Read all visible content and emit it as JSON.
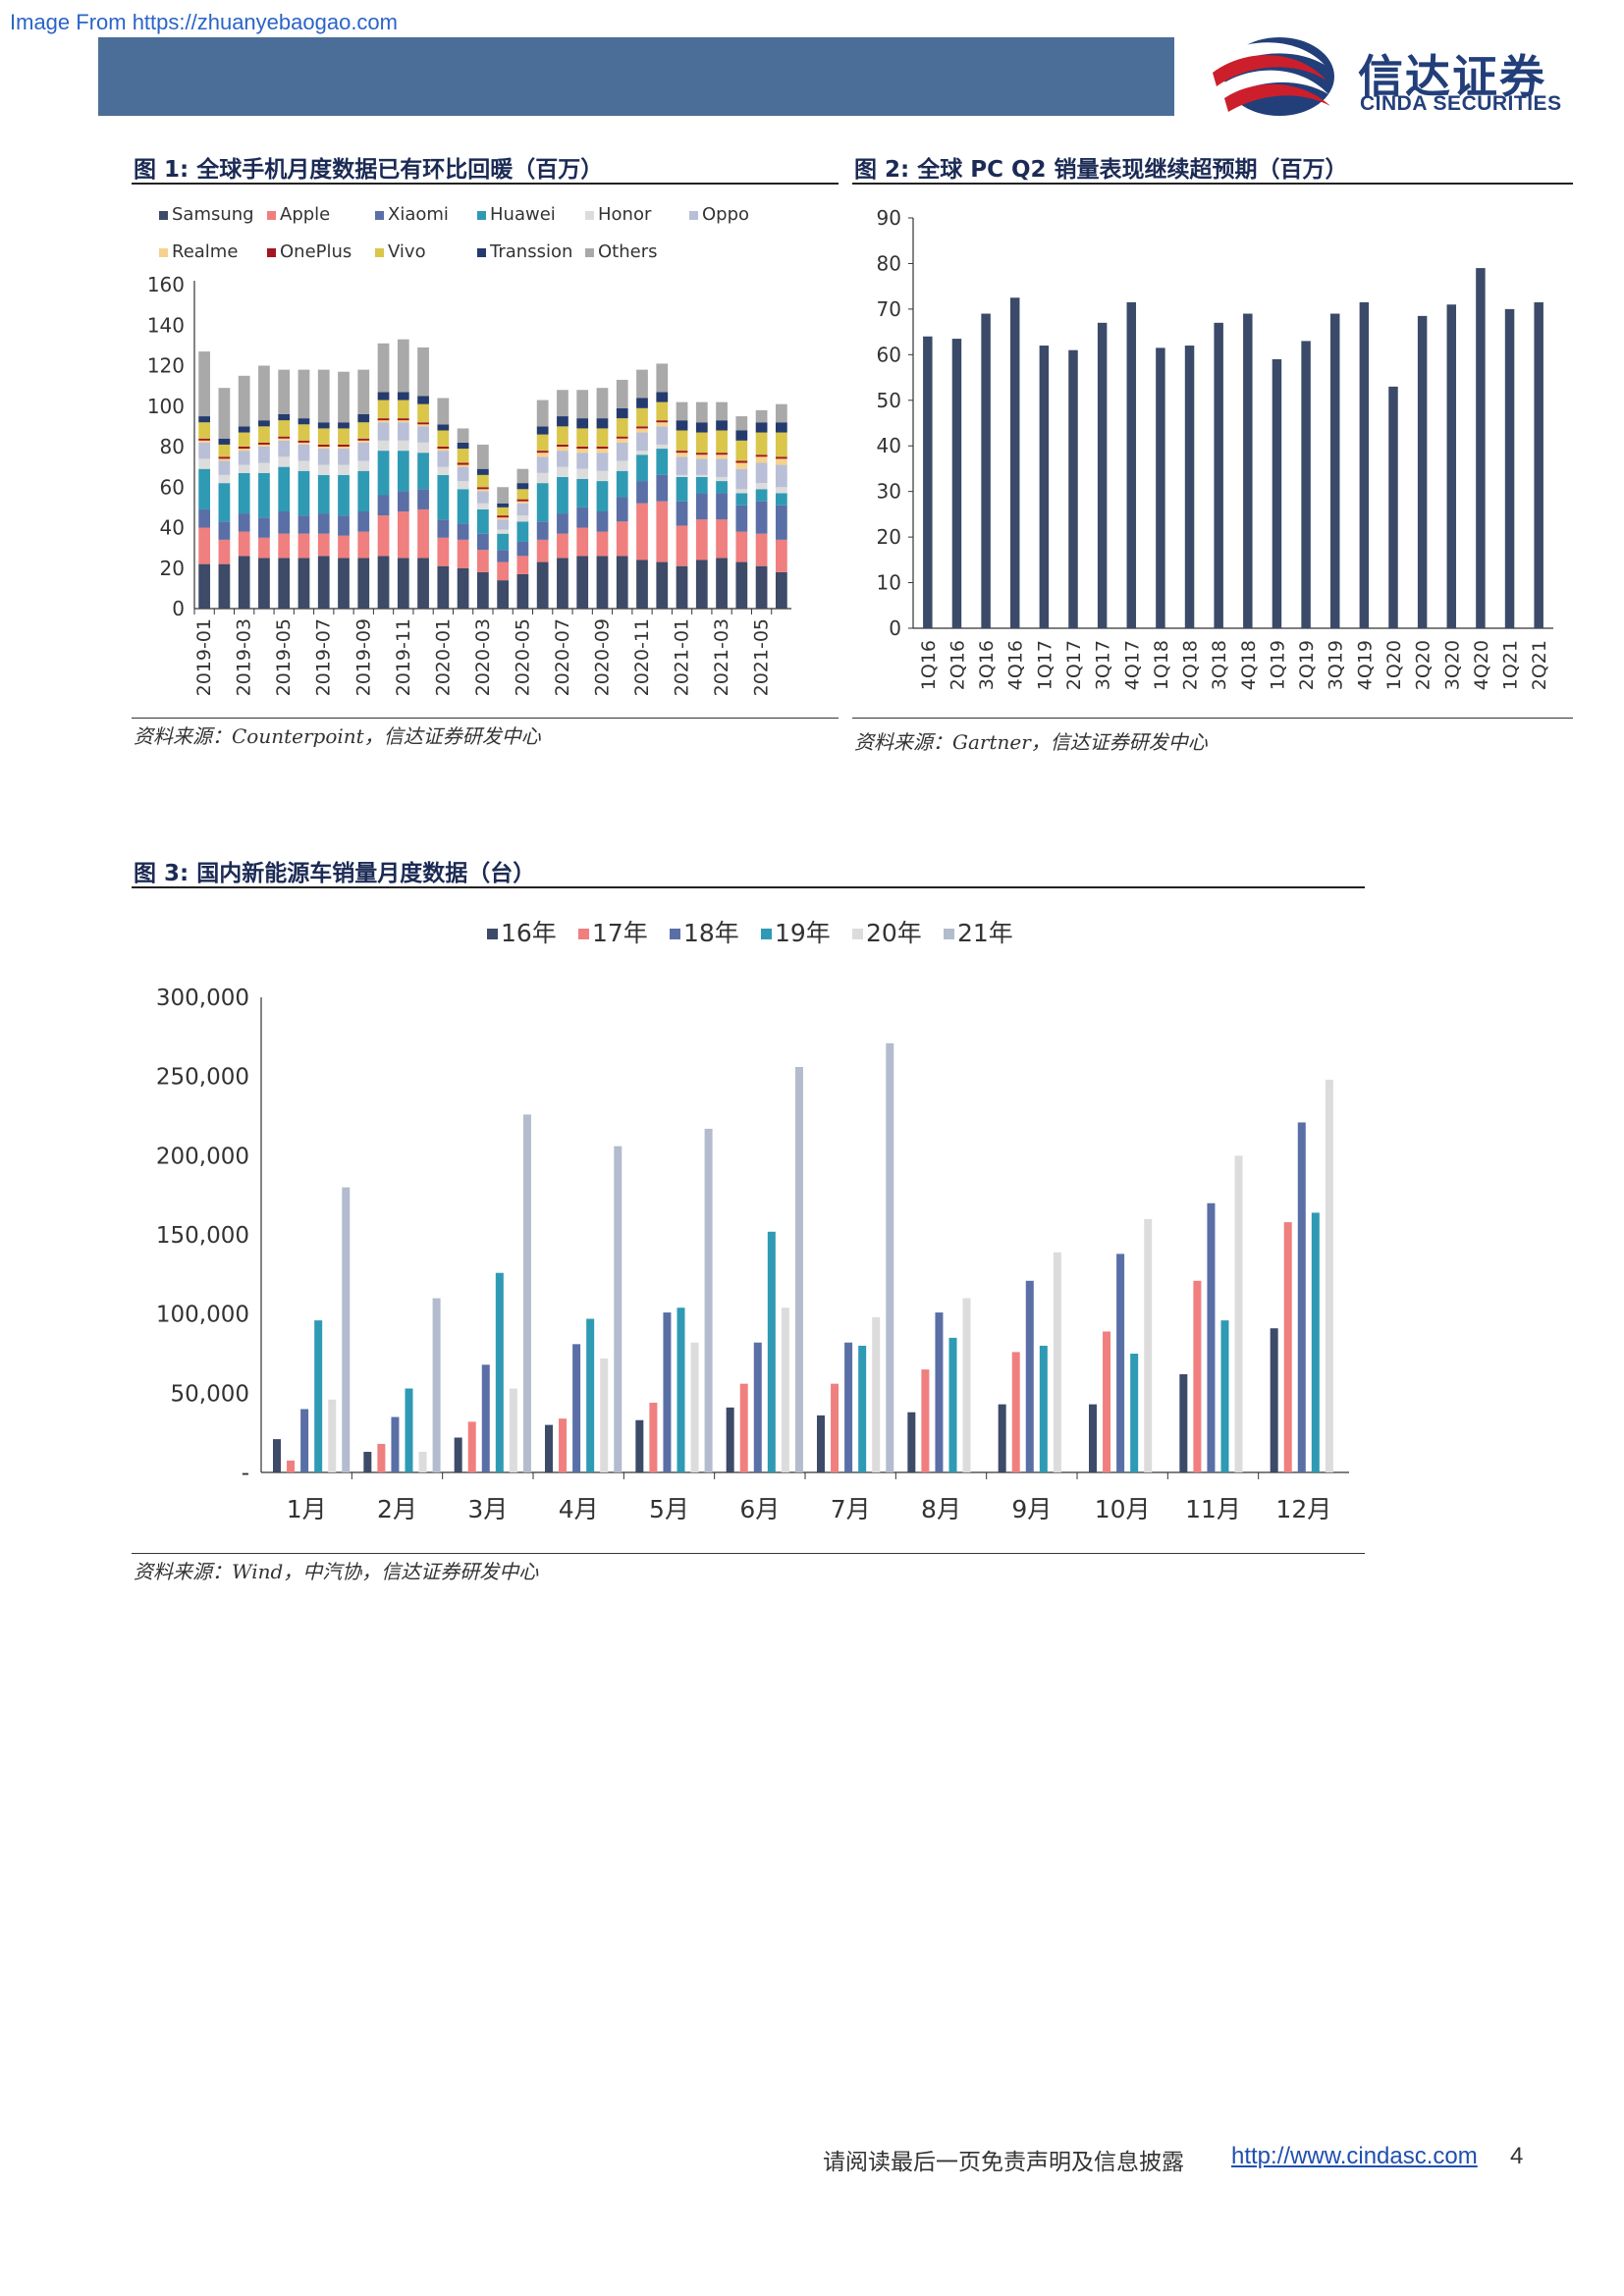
{
  "watermark": "Image From https://zhuanyebaogao.com",
  "logo": {
    "cn": "信达证券",
    "en": "CINDA SECURITIES",
    "colors": [
      "#cc1f2b",
      "#233f7a"
    ]
  },
  "fig1": {
    "title": "图 1:  全球手机月度数据已有环比回暖（百万）",
    "source": "资料来源：Counterpoint，信达证券研发中心"
  },
  "fig2": {
    "title": "图 2:  全球 PC Q2 销量表现继续超预期（百万）",
    "source": "资料来源：Gartner，信达证券研发中心"
  },
  "fig3": {
    "title": "图 3:  国内新能源车销量月度数据（台）",
    "source": "资料来源：Wind，中汽协，信达证券研发中心"
  },
  "footer": {
    "text": "请阅读最后一页免责声明及信息披露",
    "link": "http://www.cindasc.com",
    "page": "4"
  },
  "chart_data": [
    {
      "type": "bar",
      "stacked": true,
      "title": "全球手机月度数据已有环比回暖（百万）",
      "ylim": [
        0,
        160
      ],
      "yticks": [
        0,
        20,
        40,
        60,
        80,
        100,
        120,
        140,
        160
      ],
      "legend": "top",
      "categories": [
        "2019-01",
        "2019-02",
        "2019-03",
        "2019-04",
        "2019-05",
        "2019-06",
        "2019-07",
        "2019-08",
        "2019-09",
        "2019-10",
        "2019-11",
        "2019-12",
        "2020-01",
        "2020-02",
        "2020-03",
        "2020-04",
        "2020-05",
        "2020-06",
        "2020-07",
        "2020-08",
        "2020-09",
        "2020-10",
        "2020-11",
        "2020-12",
        "2021-01",
        "2021-02",
        "2021-03",
        "2021-04",
        "2021-05",
        "2021-06"
      ],
      "tick_labels": [
        "2019-01",
        "2019-03",
        "2019-05",
        "2019-07",
        "2019-09",
        "2019-11",
        "2020-01",
        "2020-03",
        "2020-05",
        "2020-07",
        "2020-09",
        "2020-11",
        "2021-01",
        "2021-03",
        "2021-05"
      ],
      "series": [
        {
          "name": "Samsung",
          "color": "#3d4a68",
          "values": [
            22,
            22,
            26,
            25,
            25,
            25,
            26,
            25,
            25,
            26,
            25,
            25,
            21,
            20,
            18,
            14,
            17,
            23,
            25,
            26,
            26,
            26,
            24,
            23,
            21,
            24,
            25,
            23,
            21,
            18
          ]
        },
        {
          "name": "Apple",
          "color": "#f07f7f",
          "values": [
            18,
            12,
            12,
            10,
            12,
            12,
            11,
            11,
            13,
            20,
            23,
            24,
            14,
            14,
            11,
            9,
            9,
            11,
            12,
            14,
            12,
            17,
            28,
            30,
            20,
            20,
            19,
            15,
            16,
            16
          ]
        },
        {
          "name": "Xiaomi",
          "color": "#5a6fa6",
          "values": [
            9,
            9,
            9,
            10,
            11,
            9,
            10,
            10,
            10,
            10,
            10,
            10,
            9,
            8,
            8,
            6,
            7,
            9,
            10,
            10,
            10,
            12,
            11,
            13,
            12,
            13,
            13,
            13,
            16,
            17
          ]
        },
        {
          "name": "Huawei",
          "color": "#2f9ab4",
          "values": [
            20,
            19,
            20,
            22,
            22,
            22,
            19,
            20,
            20,
            22,
            20,
            18,
            22,
            17,
            12,
            8,
            10,
            19,
            18,
            14,
            15,
            13,
            13,
            13,
            12,
            8,
            6,
            6,
            6,
            6
          ]
        },
        {
          "name": "Honor",
          "color": "#dcdcdc",
          "values": [
            5,
            4,
            4,
            5,
            5,
            5,
            5,
            5,
            5,
            5,
            5,
            5,
            4,
            4,
            3,
            2,
            3,
            5,
            5,
            5,
            5,
            5,
            2,
            2,
            1,
            1,
            2,
            2,
            3,
            3
          ]
        },
        {
          "name": "Oppo",
          "color": "#b8bfd6",
          "values": [
            8,
            7,
            7,
            8,
            8,
            8,
            8,
            8,
            9,
            9,
            9,
            8,
            8,
            7,
            6,
            5,
            6,
            8,
            8,
            8,
            9,
            9,
            9,
            9,
            9,
            8,
            9,
            10,
            10,
            11
          ]
        },
        {
          "name": "Realme",
          "color": "#f5d28c",
          "values": [
            1,
            1,
            1,
            1,
            1,
            1,
            1,
            1,
            1,
            1,
            1,
            1,
            1,
            1,
            1,
            1,
            1,
            2,
            2,
            2,
            2,
            2,
            2,
            2,
            2,
            2,
            2,
            3,
            3,
            3
          ]
        },
        {
          "name": "OnePlus",
          "color": "#a31621",
          "values": [
            1,
            1,
            1,
            1,
            1,
            1,
            1,
            1,
            1,
            1,
            1,
            1,
            1,
            1,
            1,
            1,
            1,
            1,
            1,
            1,
            1,
            1,
            1,
            1,
            1,
            1,
            1,
            1,
            1,
            1
          ]
        },
        {
          "name": "Vivo",
          "color": "#d9c64a",
          "values": [
            8,
            6,
            7,
            8,
            8,
            8,
            8,
            8,
            8,
            9,
            9,
            9,
            8,
            7,
            6,
            4,
            5,
            8,
            9,
            9,
            9,
            9,
            9,
            9,
            10,
            10,
            11,
            10,
            11,
            12
          ]
        },
        {
          "name": "Transsion",
          "color": "#253b6e",
          "values": [
            3,
            3,
            3,
            3,
            3,
            3,
            3,
            3,
            4,
            4,
            4,
            4,
            3,
            3,
            3,
            2,
            3,
            4,
            5,
            5,
            5,
            5,
            5,
            5,
            5,
            5,
            5,
            5,
            5,
            5
          ]
        },
        {
          "name": "Others",
          "color": "#a9a9a9",
          "values": [
            32,
            25,
            25,
            27,
            22,
            24,
            26,
            25,
            22,
            24,
            26,
            24,
            13,
            7,
            12,
            8,
            7,
            13,
            13,
            14,
            15,
            14,
            14,
            14,
            9,
            10,
            9,
            7,
            6,
            9
          ]
        }
      ]
    },
    {
      "type": "bar",
      "title": "全球 PC Q2 销量表现继续超预期（百万）",
      "ylim": [
        0,
        90
      ],
      "yticks": [
        0,
        10,
        20,
        30,
        40,
        50,
        60,
        70,
        80,
        90
      ],
      "categories": [
        "1Q16",
        "2Q16",
        "3Q16",
        "4Q16",
        "1Q17",
        "2Q17",
        "3Q17",
        "4Q17",
        "1Q18",
        "2Q18",
        "3Q18",
        "4Q18",
        "1Q19",
        "2Q19",
        "3Q19",
        "4Q19",
        "1Q20",
        "2Q20",
        "3Q20",
        "4Q20",
        "1Q21",
        "2Q21"
      ],
      "series": [
        {
          "color": "#3b4a68",
          "values": [
            64,
            63.5,
            69,
            72.5,
            62,
            61,
            67,
            71.5,
            61.5,
            62,
            67,
            69,
            59,
            63,
            69,
            71.5,
            53,
            68.5,
            71,
            79,
            70,
            71.5
          ]
        }
      ]
    },
    {
      "type": "bar",
      "title": "国内新能源车销量月度数据（台）",
      "ylim": [
        0,
        300000
      ],
      "yticks": [
        0,
        50000,
        100000,
        150000,
        200000,
        250000,
        300000
      ],
      "ytick_labels": [
        "-",
        "50,000",
        "100,000",
        "150,000",
        "200,000",
        "250,000",
        "300,000"
      ],
      "legend": "top",
      "categories": [
        "1月",
        "2月",
        "3月",
        "4月",
        "5月",
        "6月",
        "7月",
        "8月",
        "9月",
        "10月",
        "11月",
        "12月"
      ],
      "series": [
        {
          "name": "16年",
          "color": "#3d4a68",
          "values": [
            21000,
            13000,
            22000,
            30000,
            33000,
            41000,
            36000,
            38000,
            43000,
            43000,
            62000,
            91000
          ]
        },
        {
          "name": "17年",
          "color": "#f07f7f",
          "values": [
            7500,
            18000,
            32000,
            34000,
            44000,
            56000,
            56000,
            65000,
            76000,
            89000,
            121000,
            158000
          ]
        },
        {
          "name": "18年",
          "color": "#5a6fa6",
          "values": [
            40000,
            35000,
            68000,
            81000,
            101000,
            82000,
            82000,
            101000,
            121000,
            138000,
            170000,
            221000
          ]
        },
        {
          "name": "19年",
          "color": "#2f9ab4",
          "values": [
            96000,
            53000,
            126000,
            97000,
            104000,
            152000,
            80000,
            85000,
            80000,
            75000,
            96000,
            164000
          ]
        },
        {
          "name": "20年",
          "color": "#dcdcdc",
          "values": [
            46000,
            13000,
            53000,
            72000,
            82000,
            104000,
            98000,
            110000,
            139000,
            160000,
            200000,
            248000
          ]
        },
        {
          "name": "21年",
          "color": "#b3bccd",
          "values": [
            180000,
            110000,
            226000,
            206000,
            217000,
            256000,
            271000,
            null,
            null,
            null,
            null,
            null
          ]
        }
      ]
    }
  ]
}
